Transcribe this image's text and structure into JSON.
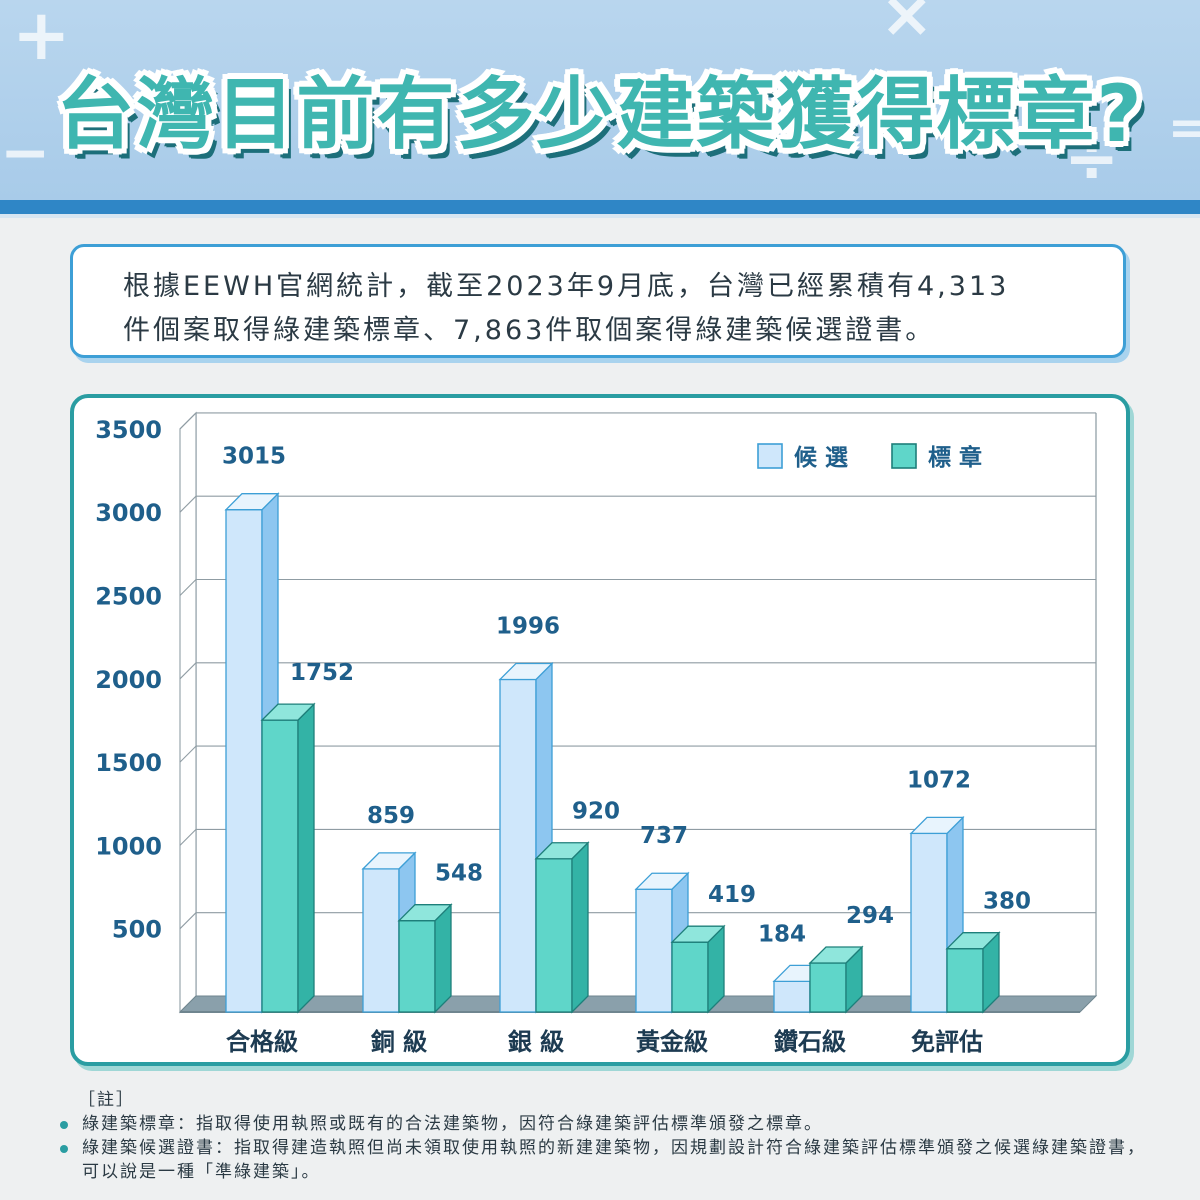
{
  "page_title": "台灣目前有多少建築獲得標章?",
  "summary": "根據EEWH官網統計，截至2023年9月底，台灣已經累積有4,313\n件個案取得綠建築標章、7,863件取個案得綠建築候選證書。",
  "notes": {
    "heading": "［註］",
    "items": [
      "綠建築標章：指取得使用執照或既有的合法建築物，因符合綠建築評估標準頒發之標章。",
      "綠建築候選證書：指取得建造執照但尚未領取使用執照的新建建築物，因規劃設計符合綠建築評估標準頒發之候選綠建築證書，可以說是一種「準綠建築」。"
    ]
  },
  "colors": {
    "candidate": "#cfe7fb",
    "candidate_side": "#8dc6f0",
    "candidate_stroke": "#3d9fd6",
    "label": "#5fd6c9",
    "label_side": "#33b3a6",
    "label_stroke": "#1e7f7a",
    "axis_text": "#1f5f8b"
  },
  "chart_data": {
    "type": "bar",
    "categories": [
      "合格級",
      "銅 級",
      "銀 級",
      "黃金級",
      "鑽石級",
      "免評估"
    ],
    "series": [
      {
        "name": "候 選",
        "values": [
          3015,
          859,
          1996,
          737,
          184,
          1072
        ]
      },
      {
        "name": "標 章",
        "values": [
          1752,
          548,
          920,
          419,
          294,
          380
        ]
      }
    ],
    "yticks": [
      "500",
      "1000",
      "1500",
      "2000",
      "2500",
      "3000",
      "3500"
    ],
    "ylim": [
      0,
      3500
    ],
    "grid": true,
    "legend": "top-right"
  }
}
